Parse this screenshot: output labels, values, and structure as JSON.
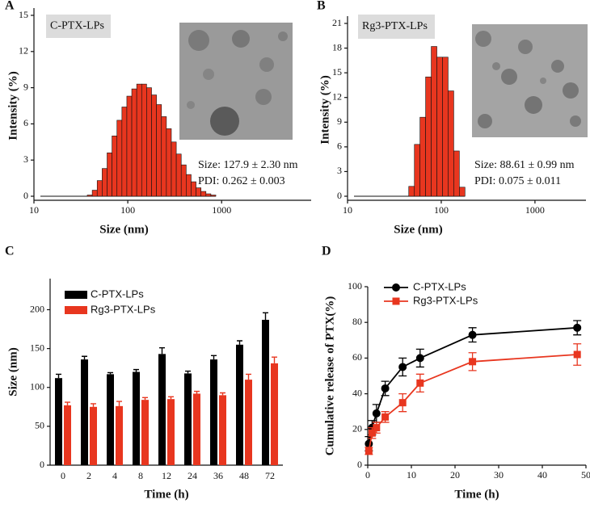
{
  "chart_data": [
    {
      "type": "histogram",
      "label": "A",
      "tag": "C-PTX-LPs",
      "annotations": [
        "Size: 127.9 ± 2.30 nm",
        "PDI: 0.262 ± 0.003"
      ],
      "xlabel": "Size (nm)",
      "ylabel": "Intensity (%)",
      "log_x": true,
      "color": "#e8361f",
      "xlim": [
        10,
        9000
      ],
      "xticks": [
        10,
        100,
        1000
      ],
      "ylim": [
        0,
        15
      ],
      "yticks": [
        0,
        3,
        6,
        9,
        12,
        15
      ],
      "bins": [
        37,
        41.8,
        47.2,
        53.3,
        60.2,
        67.9,
        76.7,
        86.6,
        97.7,
        110.3,
        124.5,
        140.6,
        158.7,
        179.2,
        202.3,
        228.4,
        257.9,
        291.1,
        328.7,
        371.1,
        418.9,
        473,
        534,
        602.8,
        680.6,
        768.4,
        867.5
      ],
      "values": [
        0.1,
        0.5,
        1.3,
        2.3,
        3.6,
        5.0,
        6.3,
        7.4,
        8.3,
        8.9,
        9.3,
        9.3,
        9.0,
        8.4,
        7.6,
        6.6,
        5.6,
        4.5,
        3.5,
        2.6,
        1.8,
        1.2,
        0.7,
        0.4,
        0.2,
        0.1
      ]
    },
    {
      "type": "histogram",
      "label": "B",
      "tag": "Rg3-PTX-LPs",
      "annotations": [
        "Size: 88.61 ± 0.99 nm",
        "PDI: 0.075 ± 0.011"
      ],
      "xlabel": "Size (nm)",
      "ylabel": "Intensity (%)",
      "log_x": true,
      "color": "#e8361f",
      "xlim": [
        10,
        3500
      ],
      "xticks": [
        10,
        100,
        1000
      ],
      "ylim": [
        0,
        21
      ],
      "yticks": [
        0,
        3,
        6,
        9,
        12,
        15,
        18,
        21
      ],
      "bins": [
        45,
        51.7,
        59.3,
        68.1,
        78.2,
        89.8,
        103.1,
        118.3,
        135.9,
        156,
        179.1
      ],
      "values": [
        1.2,
        6.3,
        9.6,
        14.5,
        18.2,
        16.9,
        16.9,
        12.8,
        5.5,
        1.1
      ]
    },
    {
      "type": "bar",
      "label": "C",
      "xlabel": "Time (h)",
      "ylabel": "Size (nm)",
      "categories": [
        "0",
        "2",
        "4",
        "8",
        "12",
        "24",
        "36",
        "48",
        "72"
      ],
      "ylim": [
        0,
        240
      ],
      "yticks": [
        0,
        50,
        100,
        150,
        200
      ],
      "series": [
        {
          "name": "C-PTX-LPs",
          "color": "#000000",
          "values": [
            112,
            136,
            117,
            120,
            143,
            118,
            136,
            155,
            187
          ],
          "errors": [
            5,
            4,
            2,
            3,
            8,
            3,
            5,
            5,
            9
          ]
        },
        {
          "name": "Rg3-PTX-LPs",
          "color": "#e8361f",
          "values": [
            77,
            75,
            76,
            84,
            85,
            92,
            90,
            110,
            131
          ],
          "errors": [
            4,
            4,
            6,
            3,
            3,
            3,
            3,
            7,
            8
          ]
        }
      ]
    },
    {
      "type": "line",
      "label": "D",
      "xlabel": "Time (h)",
      "ylabel": "Cumulative release of PTX(%)",
      "x": [
        0.25,
        1,
        2,
        4,
        8,
        12,
        24,
        48
      ],
      "xlim": [
        0,
        50
      ],
      "xticks": [
        0,
        10,
        20,
        30,
        40,
        50
      ],
      "ylim": [
        0,
        100
      ],
      "yticks": [
        0,
        20,
        40,
        60,
        80,
        100
      ],
      "series": [
        {
          "name": "C-PTX-LPs",
          "color": "#000000",
          "marker": "circle",
          "values": [
            12,
            21,
            29,
            43,
            55,
            60,
            73,
            77
          ],
          "errors": [
            4,
            4,
            5,
            4,
            5,
            5,
            4,
            4
          ]
        },
        {
          "name": "Rg3-PTX-LPs",
          "color": "#e8361f",
          "marker": "square",
          "values": [
            8,
            18,
            21,
            27,
            35,
            46,
            58,
            62
          ],
          "errors": [
            2,
            3,
            3,
            3,
            5,
            5,
            5,
            6
          ]
        }
      ]
    }
  ]
}
